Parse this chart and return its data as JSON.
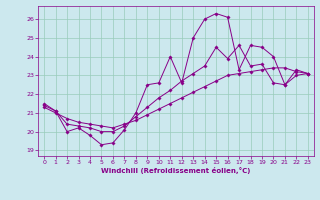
{
  "xlabel": "Windchill (Refroidissement éolien,°C)",
  "bg_color": "#cce8ee",
  "line_color": "#880088",
  "grid_color": "#99ccbb",
  "xlim": [
    -0.5,
    23.5
  ],
  "ylim": [
    18.7,
    26.7
  ],
  "xticks": [
    0,
    1,
    2,
    3,
    4,
    5,
    6,
    7,
    8,
    9,
    10,
    11,
    12,
    13,
    14,
    15,
    16,
    17,
    18,
    19,
    20,
    21,
    22,
    23
  ],
  "yticks": [
    19,
    20,
    21,
    22,
    23,
    24,
    25,
    26
  ],
  "series": [
    {
      "x": [
        0,
        1,
        2,
        3,
        4,
        5,
        6,
        7,
        8,
        9,
        10,
        11,
        12,
        13,
        14,
        15,
        16,
        17,
        18,
        19,
        20,
        21,
        22,
        23
      ],
      "y": [
        21.5,
        21.1,
        20.0,
        20.2,
        19.8,
        19.3,
        19.4,
        20.1,
        21.0,
        22.5,
        22.6,
        24.0,
        22.6,
        25.0,
        26.0,
        26.3,
        26.1,
        23.3,
        24.6,
        24.5,
        24.0,
        22.5,
        23.3,
        23.1
      ]
    },
    {
      "x": [
        0,
        1,
        2,
        3,
        4,
        5,
        6,
        7,
        8,
        9,
        10,
        11,
        12,
        13,
        14,
        15,
        16,
        17,
        18,
        19,
        20,
        21,
        22,
        23
      ],
      "y": [
        21.4,
        21.1,
        20.4,
        20.3,
        20.2,
        20.0,
        20.0,
        20.3,
        20.8,
        21.3,
        21.8,
        22.2,
        22.7,
        23.1,
        23.5,
        24.5,
        23.9,
        24.6,
        23.5,
        23.6,
        22.6,
        22.5,
        23.0,
        23.1
      ]
    },
    {
      "x": [
        0,
        1,
        2,
        3,
        4,
        5,
        6,
        7,
        8,
        9,
        10,
        11,
        12,
        13,
        14,
        15,
        16,
        17,
        18,
        19,
        20,
        21,
        22,
        23
      ],
      "y": [
        21.3,
        21.0,
        20.7,
        20.5,
        20.4,
        20.3,
        20.2,
        20.4,
        20.6,
        20.9,
        21.2,
        21.5,
        21.8,
        22.1,
        22.4,
        22.7,
        23.0,
        23.1,
        23.2,
        23.3,
        23.4,
        23.4,
        23.2,
        23.1
      ]
    }
  ]
}
